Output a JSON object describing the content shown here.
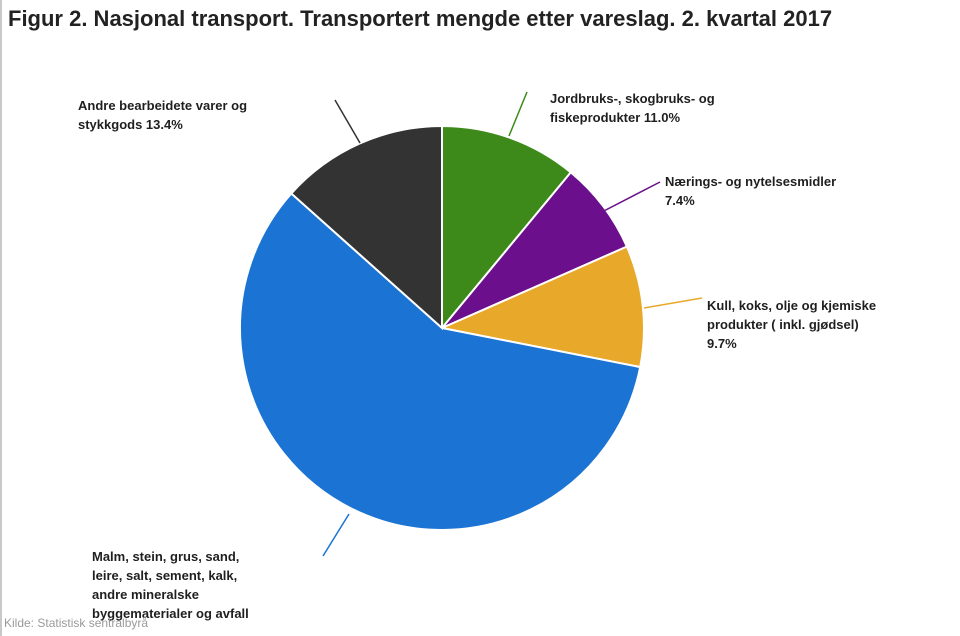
{
  "chart_data": {
    "type": "pie",
    "title": "Figur 2. Nasjonal transport. Transportert mengde etter vareslag. 2. kvartal 2017",
    "start_angle_deg": 0,
    "direction": "clockwise",
    "slices": [
      {
        "label_lines": [
          "Jordbruks-, skogbruks- og",
          "fiskeprodukter 11.0%"
        ],
        "value": 11.0,
        "color": "#3d8a1a"
      },
      {
        "label_lines": [
          "Nærings- og nytelsesmidler",
          "7.4%"
        ],
        "value": 7.4,
        "color": "#6b0f8c"
      },
      {
        "label_lines": [
          "Kull, koks, olje og kjemiske",
          "produkter ( inkl. gjødsel)",
          "9.7%"
        ],
        "value": 9.7,
        "color": "#e8a92b"
      },
      {
        "label_lines": [
          "Malm, stein, grus, sand,",
          "leire, salt, sement, kalk,",
          "andre mineralske",
          "byggematerialer og avfall"
        ],
        "value": 58.5,
        "color": "#1b74d3"
      },
      {
        "label_lines": [
          "Andre bearbeidete varer og",
          "stykkgods 13.4%"
        ],
        "value": 13.4,
        "color": "#333333"
      }
    ],
    "legend": "none"
  },
  "source": "Kilde: Statistisk sentralbyrå"
}
